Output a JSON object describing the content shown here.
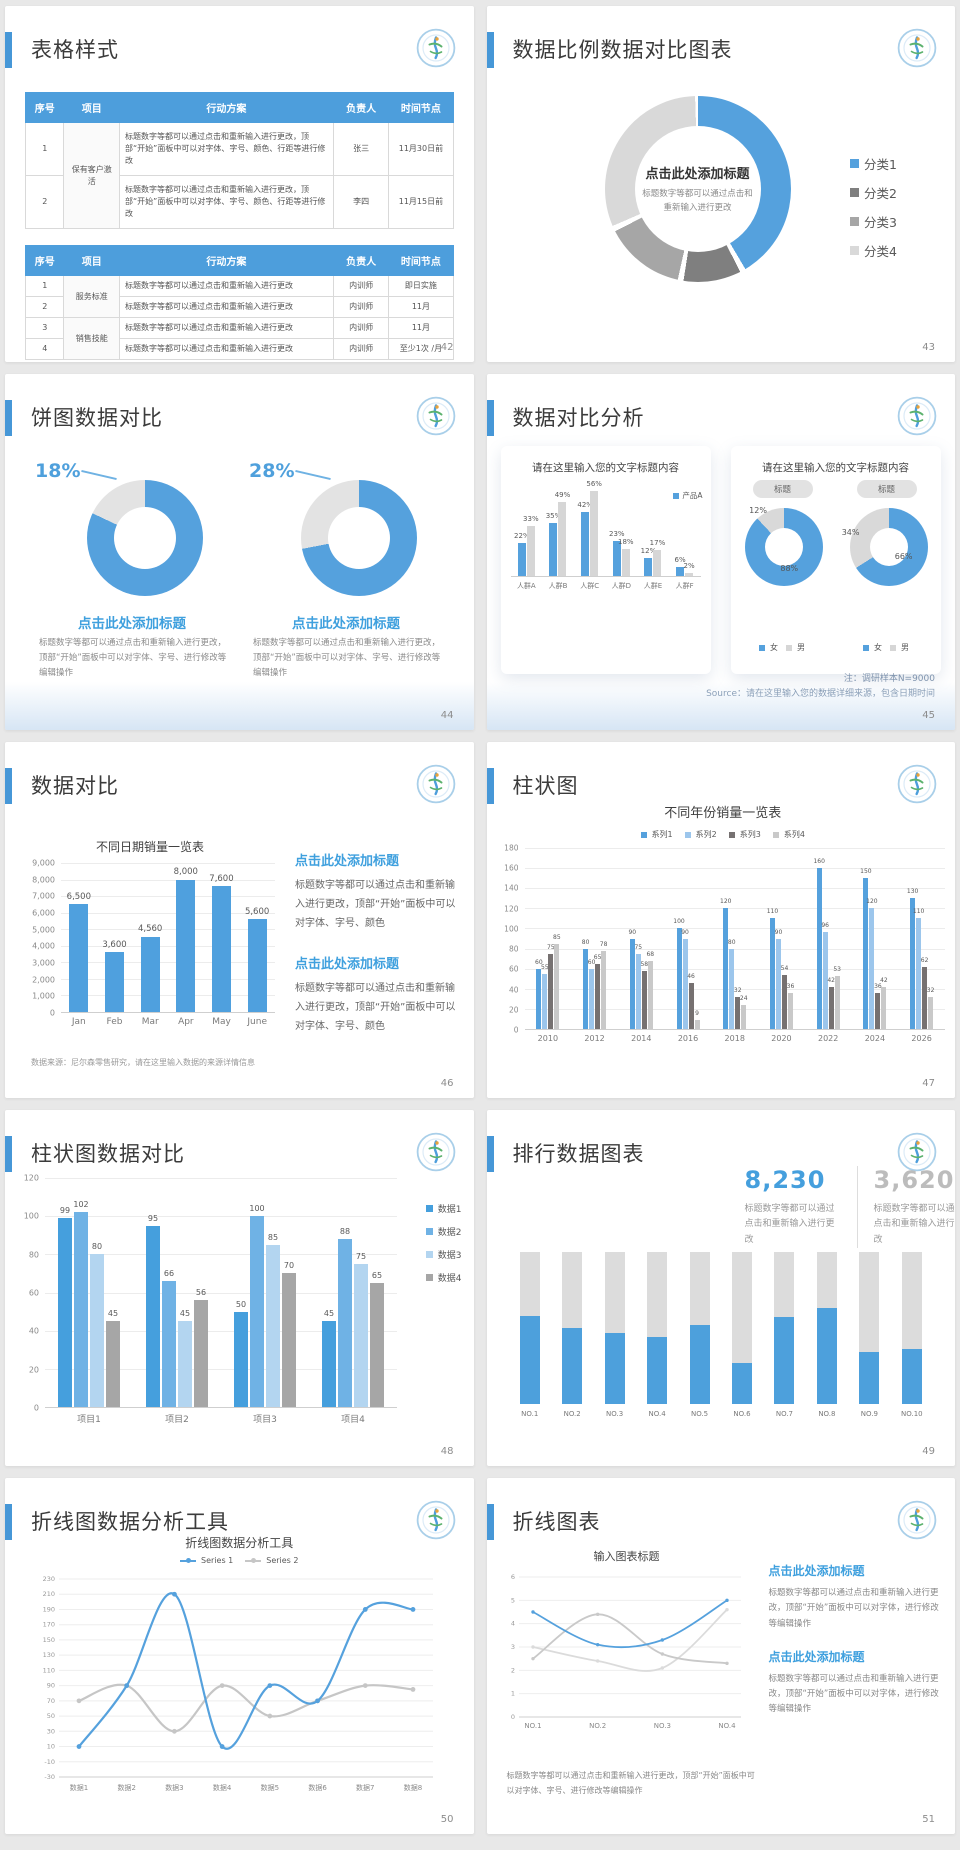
{
  "colors": {
    "accent": "#4697D7",
    "blue": "#55A1DD",
    "blueDeep": "#459FDD",
    "blueLight": "#9CC6EC",
    "bluePale": "#B3D5F0",
    "grayDark": "#767171",
    "gray": "#A6A6A6",
    "grayLight": "#D9D9D9",
    "titleBlue": "#3FA0DE",
    "tableHeader": "#4D9EDC"
  },
  "slides": [
    {
      "title": "表格样式",
      "page": "42",
      "tables": [
        {
          "headers": [
            "序号",
            "项目",
            "行动方案",
            "负责人",
            "时间节点"
          ],
          "widths": [
            "9%",
            "13%",
            "50%",
            "13%",
            "15%"
          ],
          "rows": [
            [
              {
                "v": "1"
              },
              {
                "v": "保有客户激活",
                "rs": 2,
                "cls": "proj"
              },
              {
                "v": "标题数字等都可以通过点击和重新输入进行更改，顶部“开始”面板中可以对字体、字号、颜色、行距等进行修改",
                "cls": "left"
              },
              {
                "v": "张三"
              },
              {
                "v": "11月30日前"
              }
            ],
            [
              {
                "v": "2"
              },
              {
                "v": "标题数字等都可以通过点击和重新输入进行更改，顶部“开始”面板中可以对字体、字号、颜色、行距等进行修改",
                "cls": "left"
              },
              {
                "v": "李四"
              },
              {
                "v": "11月15日前"
              }
            ]
          ]
        },
        {
          "headers": [
            "序号",
            "项目",
            "行动方案",
            "负责人",
            "时间节点"
          ],
          "widths": [
            "9%",
            "13%",
            "50%",
            "13%",
            "15%"
          ],
          "rows": [
            [
              {
                "v": "1"
              },
              {
                "v": "服务标准",
                "rs": 2,
                "cls": "proj"
              },
              {
                "v": "标题数字等都可以通过点击和重新输入进行更改",
                "cls": "left"
              },
              {
                "v": "内训师"
              },
              {
                "v": "即日实施"
              }
            ],
            [
              {
                "v": "2"
              },
              {
                "v": "标题数字等都可以通过点击和重新输入进行更改",
                "cls": "left"
              },
              {
                "v": "内训师"
              },
              {
                "v": "11月"
              }
            ],
            [
              {
                "v": "3"
              },
              {
                "v": "销售技能",
                "rs": 2,
                "cls": "proj"
              },
              {
                "v": "标题数字等都可以通过点击和重新输入进行更改",
                "cls": "left"
              },
              {
                "v": "内训师"
              },
              {
                "v": "11月"
              }
            ],
            [
              {
                "v": "4"
              },
              {
                "v": "标题数字等都可以通过点击和重新输入进行更改",
                "cls": "left"
              },
              {
                "v": "内训师"
              },
              {
                "v": "至少1次 /月"
              }
            ]
          ]
        }
      ]
    },
    {
      "title": "数据比例数据对比图表",
      "page": "43",
      "chart": {
        "type": "donut",
        "center_title": "点击此处添加标题",
        "center_caption": "标题数字等都可以通过点击和重新输入进行更改",
        "segments": [
          {
            "label": "分类1",
            "pct": 42,
            "color": "#55A1DD"
          },
          {
            "label": "分类2",
            "pct": 11,
            "color": "#7F7F7F"
          },
          {
            "label": "分类3",
            "pct": 15,
            "color": "#A6A6A6"
          },
          {
            "label": "分类4",
            "pct": 32,
            "color": "#D9D9D9"
          }
        ]
      }
    },
    {
      "title": "饼图数据对比",
      "page": "44",
      "caption": "标题数字等都可以通过点击和重新输入进行更改，顶部“开始”面板中可以对字体、字号、进行修改等编辑操作",
      "donuts": [
        {
          "pct_label": "18%",
          "title": "点击此处添加标题",
          "chart": {
            "type": "donut",
            "segments": [
              {
                "pct": 82,
                "color": "#55A1DD"
              },
              {
                "pct": 18,
                "color": "#E3E3E3"
              }
            ]
          }
        },
        {
          "pct_label": "28%",
          "title": "点击此处添加标题",
          "chart": {
            "type": "donut",
            "segments": [
              {
                "pct": 72,
                "color": "#55A1DD"
              },
              {
                "pct": 28,
                "color": "#E3E3E3"
              }
            ]
          }
        }
      ]
    },
    {
      "title": "数据对比分析",
      "page": "45",
      "cards": [
        {
          "card_title": "请在这里输入您的文字标题内容",
          "legend": "产品A",
          "chart": {
            "type": "bar",
            "categories": [
              "人群A",
              "人群B",
              "人群C",
              "人群D",
              "人群E",
              "人群F"
            ],
            "series": [
              {
                "name": "产品A",
                "color": "#55A1DD",
                "values": [
                  22,
                  35,
                  42,
                  23,
                  12,
                  6
                ]
              },
              {
                "name": "",
                "color": "#D6D6D6",
                "values": [
                  33,
                  49,
                  56,
                  18,
                  17,
                  2
                ]
              }
            ],
            "ylim": [
              0,
              60
            ]
          }
        },
        {
          "card_title": "请在这里输入您的文字标题内容",
          "badge": "标题",
          "donuts": [
            {
              "slice_labels": [
                "12%",
                "88%"
              ],
              "chart": {
                "type": "donut",
                "segments": [
                  {
                    "pct": 88,
                    "color": "#55A1DD"
                  },
                  {
                    "pct": 12,
                    "color": "#D9D9D9"
                  }
                ]
              }
            },
            {
              "slice_labels": [
                "34%",
                "66%"
              ],
              "chart": {
                "type": "donut",
                "segments": [
                  {
                    "pct": 66,
                    "color": "#55A1DD"
                  },
                  {
                    "pct": 34,
                    "color": "#D9D9D9"
                  }
                ]
              }
            }
          ],
          "legend_items": [
            {
              "label": "女",
              "color": "#55A1DD"
            },
            {
              "label": "男",
              "color": "#D6D6D6"
            }
          ]
        }
      ],
      "note1": "注：调研样本N=9000",
      "note2": "Source：请在这里输入您的数据详细来源，包含日期时间"
    },
    {
      "title": "数据对比",
      "page": "46",
      "chart": {
        "type": "bar",
        "title": "不同日期销量一览表",
        "categories": [
          "Jan",
          "Feb",
          "Mar",
          "Apr",
          "May",
          "June"
        ],
        "values": [
          6500,
          3600,
          4560,
          8000,
          7600,
          5600
        ],
        "labels": [
          "6,500",
          "3,600",
          "4,560",
          "8,000",
          "7,600",
          "5,600"
        ],
        "yTicks": [
          "9,000",
          "8,000",
          "7,000",
          "6,000",
          "5,000",
          "4,000",
          "3,000",
          "2,000",
          "1,000",
          "0"
        ],
        "ylim": [
          0,
          9000
        ],
        "color": "#4FA0DE"
      },
      "blocks": [
        {
          "title": "点击此处添加标题",
          "caption": "标题数字等都可以通过点击和重新输入进行更改，顶部“开始”面板中可以对字体、字号、颜色"
        },
        {
          "title": "点击此处添加标题",
          "caption": "标题数字等都可以通过点击和重新输入进行更改，顶部“开始”面板中可以对字体、字号、颜色"
        }
      ],
      "note": "数据来源：尼尔森零售研究，请在这里输入数据的来源详情信息"
    },
    {
      "title": "柱状图",
      "page": "47",
      "chart": {
        "type": "bar",
        "title": "不同年份销量一览表",
        "categories": [
          "2010",
          "2012",
          "2014",
          "2016",
          "2018",
          "2020",
          "2022",
          "2024",
          "2026"
        ],
        "series": [
          {
            "name": "系列1",
            "color": "#55A1DD",
            "values": [
              60,
              80,
              90,
              100,
              120,
              110,
              160,
              150,
              130
            ]
          },
          {
            "name": "系列2",
            "color": "#9CC6EC",
            "values": [
              55,
              60,
              75,
              90,
              80,
              90,
              96,
              120,
              110
            ]
          },
          {
            "name": "系列3",
            "color": "#767171",
            "values": [
              75,
              65,
              58,
              46,
              32,
              54,
              42,
              36,
              62
            ]
          },
          {
            "name": "系列4",
            "color": "#C9C9C9",
            "values": [
              85,
              78,
              68,
              9,
              24,
              36,
              53,
              42,
              32
            ]
          }
        ],
        "yTicks": [
          "180",
          "160",
          "140",
          "120",
          "100",
          "80",
          "60",
          "40",
          "20",
          "0"
        ],
        "ylim": [
          0,
          180
        ]
      }
    },
    {
      "title": "柱状图数据对比",
      "page": "48",
      "chart": {
        "type": "bar",
        "categories": [
          "项目1",
          "项目2",
          "项目3",
          "项目4"
        ],
        "series": [
          {
            "name": "数据1",
            "color": "#459FDD",
            "values": [
              99,
              95,
              50,
              45
            ]
          },
          {
            "name": "数据2",
            "color": "#6FB2E5",
            "values": [
              102,
              66,
              100,
              88
            ]
          },
          {
            "name": "数据3",
            "color": "#B3D5F0",
            "values": [
              80,
              45,
              85,
              75
            ]
          },
          {
            "name": "数据4",
            "color": "#A6A6A6",
            "values": [
              45,
              56,
              70,
              65
            ]
          }
        ],
        "yTicks": [
          "120",
          "100",
          "80",
          "60",
          "40",
          "20",
          "0"
        ],
        "ylim": [
          0,
          120
        ]
      }
    },
    {
      "title": "排行数据图表",
      "page": "49",
      "stats": [
        {
          "value": "8,230",
          "caption": "标题数字等都可以通过点击和重新输入进行更改"
        },
        {
          "value": "3,620",
          "caption": "标题数字等都可以通过点击和重新输入进行更改"
        }
      ],
      "chart": {
        "type": "stacked-bar",
        "categories": [
          "NO.1",
          "NO.2",
          "NO.3",
          "NO.4",
          "NO.5",
          "NO.6",
          "NO.7",
          "NO.8",
          "NO.9",
          "NO.10"
        ],
        "blue_pct": [
          58,
          50,
          47,
          44,
          52,
          27,
          57,
          63,
          34,
          36
        ],
        "blue": "#4DA0DC",
        "gray": "#DCDCDC"
      }
    },
    {
      "title": "折线图数据分析工具",
      "page": "50",
      "chart": {
        "type": "line",
        "title": "折线图数据分析工具",
        "legend": [
          {
            "label": "Series 1",
            "color": "#55A1DD"
          },
          {
            "label": "Series 2",
            "color": "#C6C6C6"
          }
        ],
        "categories": [
          "数据1",
          "数据2",
          "数据3",
          "数据4",
          "数据5",
          "数据6",
          "数据7",
          "数据8"
        ],
        "series": [
          {
            "name": "Series 1",
            "color": "#55A1DD",
            "values": [
              10,
              90,
              210,
              10,
              90,
              70,
              190,
              190
            ]
          },
          {
            "name": "Series 2",
            "color": "#C6C6C6",
            "values": [
              70,
              90,
              30,
              90,
              50,
              70,
              90,
              85
            ]
          }
        ],
        "yTicks": [
          "230",
          "210",
          "190",
          "170",
          "150",
          "130",
          "110",
          "90",
          "70",
          "50",
          "30",
          "10",
          "-10",
          "-30"
        ],
        "ylim": [
          -30,
          230
        ]
      }
    },
    {
      "title": "折线图表",
      "page": "51",
      "chart": {
        "type": "line",
        "title": "输入图表标题",
        "categories": [
          "NO.1",
          "NO.2",
          "NO.3",
          "NO.4"
        ],
        "series": [
          {
            "name": "",
            "color": "#55A1DD",
            "values": [
              4.5,
              3.1,
              3.3,
              5.0
            ]
          },
          {
            "name": "",
            "color": "#C9C9C9",
            "values": [
              2.5,
              4.4,
              2.7,
              2.3
            ]
          },
          {
            "name": "",
            "color": "#DBDBDB",
            "values": [
              3.0,
              2.4,
              2.1,
              4.6
            ]
          }
        ],
        "yTicks": [
          "6",
          "5",
          "4",
          "3",
          "2",
          "1",
          "0"
        ],
        "ylim": [
          0,
          6
        ]
      },
      "blocks": [
        {
          "title": "点击此处添加标题",
          "caption": "标题数字等都可以通过点击和重新输入进行更改，顶部“开始”面板中可以对字体，进行修改等编辑操作"
        },
        {
          "title": "点击此处添加标题",
          "caption": "标题数字等都可以通过点击和重新输入进行更改，顶部“开始”面板中可以对字体，进行修改等编辑操作"
        }
      ],
      "note": "标题数字等都可以通过点击和重新输入进行更改，顶部“开始”面板中可以对字体、字号、进行修改等编辑操作"
    }
  ]
}
